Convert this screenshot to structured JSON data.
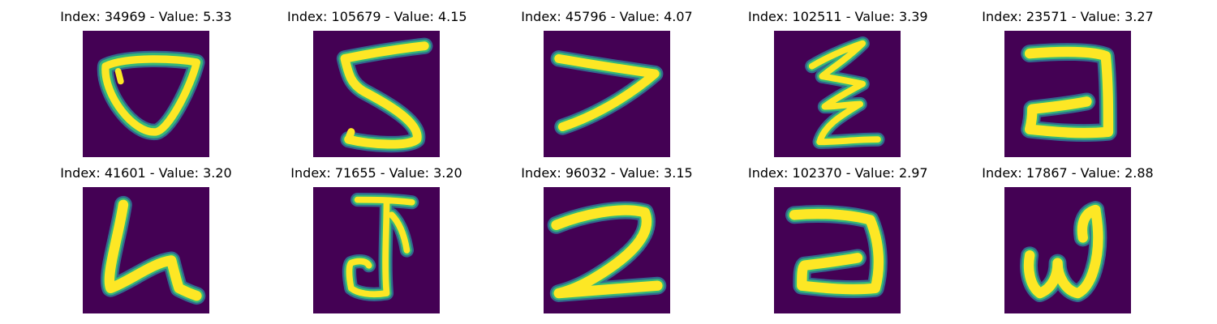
{
  "colors": {
    "background": "#440154",
    "stroke_core": "#fde725",
    "stroke_mid": "#35b779",
    "stroke_edge": "#31688e"
  },
  "panels": [
    {
      "title": "Index: 34969 - Value: 5.33",
      "glyph": "loop-shape"
    },
    {
      "title": "Index: 105679 - Value: 4.15",
      "glyph": "five-shape"
    },
    {
      "title": "Index: 45796 - Value: 4.07",
      "glyph": "seven-shape"
    },
    {
      "title": "Index: 102511 - Value: 3.39",
      "glyph": "three-reversed-shape"
    },
    {
      "title": "Index: 23571 - Value: 3.27",
      "glyph": "two-block-shape"
    },
    {
      "title": "Index: 41601 - Value: 3.20",
      "glyph": "u-hook-shape"
    },
    {
      "title": "Index: 71655 - Value: 3.20",
      "glyph": "i-hook-shape"
    },
    {
      "title": "Index: 96032 - Value: 3.15",
      "glyph": "two-script-shape"
    },
    {
      "title": "Index: 102370 - Value: 2.97",
      "glyph": "two-block-shape-alt"
    },
    {
      "title": "Index: 17867 - Value: 2.88",
      "glyph": "w-shape"
    }
  ]
}
